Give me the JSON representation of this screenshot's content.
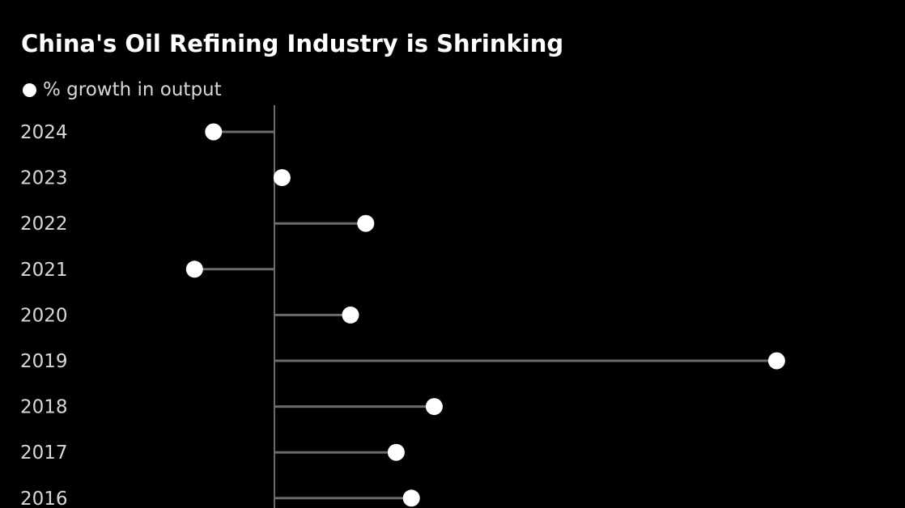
{
  "chart_data": {
    "type": "dot",
    "title": "China's Oil Refining Industry is Shrinking",
    "legend": {
      "position": "top-left",
      "entries": [
        "% growth in output"
      ]
    },
    "series": [
      {
        "name": "% growth in output",
        "color": "#ffffff"
      }
    ],
    "categories": [
      "2024",
      "2023",
      "2022",
      "2021",
      "2020",
      "2019",
      "2018",
      "2017",
      "2016"
    ],
    "values": [
      -1.6,
      0.2,
      2.4,
      -2.1,
      2.0,
      13.2,
      4.2,
      3.2,
      3.6
    ],
    "xlim": [
      -3,
      14
    ],
    "grid": false,
    "colors": {
      "background": "#000000",
      "marker": "#ffffff",
      "stem": "#6b6b6b",
      "axis": "#6b6b6b",
      "text": "#d8d8d8"
    }
  }
}
